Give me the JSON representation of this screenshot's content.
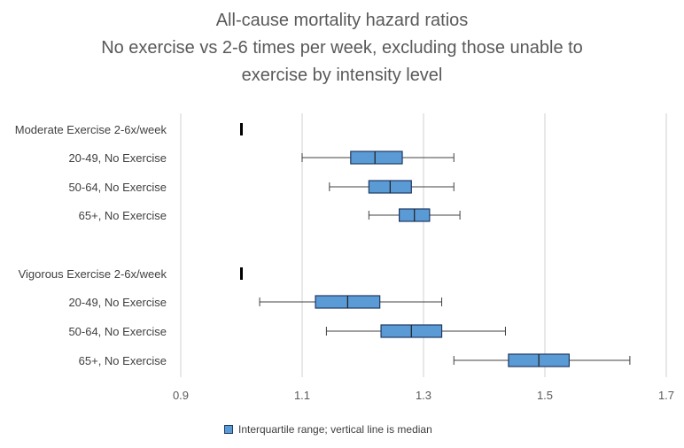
{
  "chart_data": {
    "type": "box",
    "title": "All-cause mortality hazard ratios",
    "subtitle_lines": [
      "No exercise vs 2-6 times per week, excluding those unable to",
      "exercise by intensity level"
    ],
    "x_axis": {
      "ticks": [
        "0.9",
        "1.1",
        "1.3",
        "1.5",
        "1.7"
      ],
      "tick_values": [
        0.9,
        1.1,
        1.3,
        1.5,
        1.7
      ],
      "range": [
        0.9,
        1.7
      ],
      "gridlines": true
    },
    "legend": {
      "position": "bottom",
      "label": "Interquartile range; vertical line is median"
    },
    "colors": {
      "box_fill": "#5b9bd5",
      "box_stroke": "#1f3864",
      "grid": "#d9d9d9",
      "whisker": "#404040"
    },
    "rows": [
      {
        "label": "Moderate Exercise 2-6x/week",
        "reference": 1.0
      },
      {
        "label": "20-49, No Exercise",
        "min": 1.1,
        "q1": 1.18,
        "median": 1.22,
        "q3": 1.265,
        "max": 1.35
      },
      {
        "label": "50-64, No Exercise",
        "min": 1.145,
        "q1": 1.21,
        "median": 1.245,
        "q3": 1.28,
        "max": 1.35
      },
      {
        "label": "65+, No Exercise",
        "min": 1.21,
        "q1": 1.26,
        "median": 1.285,
        "q3": 1.31,
        "max": 1.36
      },
      {
        "label": "Vigorous Exercise 2-6x/week",
        "reference": 1.0
      },
      {
        "label": "20-49, No Exercise",
        "min": 1.03,
        "q1": 1.122,
        "median": 1.175,
        "q3": 1.228,
        "max": 1.33
      },
      {
        "label": "50-64, No Exercise",
        "min": 1.14,
        "q1": 1.23,
        "median": 1.28,
        "q3": 1.33,
        "max": 1.435
      },
      {
        "label": "65+, No Exercise",
        "min": 1.35,
        "q1": 1.44,
        "median": 1.49,
        "q3": 1.54,
        "max": 1.64
      }
    ]
  }
}
